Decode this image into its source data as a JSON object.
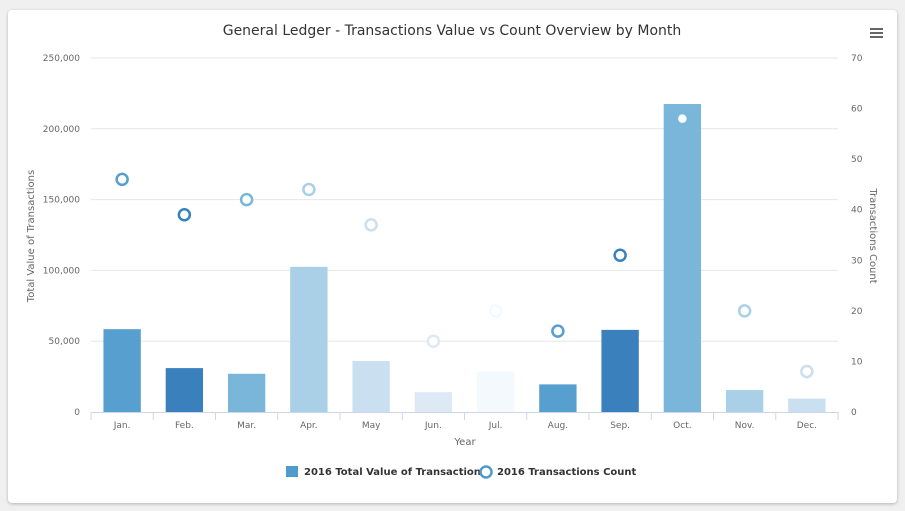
{
  "menu_icon": "hamburger-menu-icon",
  "chart_data": {
    "type": "bar",
    "title": "General Ledger - Transactions Value vs Count Overview by Month",
    "xlabel": "Year",
    "ylabel": "Total Value of Transactions",
    "y2label": "Transactions Count",
    "categories": [
      "Jan.",
      "Feb.",
      "Mar.",
      "Apr.",
      "May",
      "Jun.",
      "Jul.",
      "Aug.",
      "Sep.",
      "Oct.",
      "Nov.",
      "Dec."
    ],
    "ylim": [
      0,
      250000
    ],
    "yticks": [
      "0",
      "50,000",
      "100,000",
      "150,000",
      "200,000",
      "250,000"
    ],
    "y2lim": [
      0,
      70
    ],
    "y2ticks": [
      "0",
      "10",
      "20",
      "30",
      "40",
      "50",
      "60",
      "70"
    ],
    "grid": true,
    "legend_position": "bottom-center",
    "series": [
      {
        "name": "2016 Total Value of Transactions",
        "type": "bar",
        "axis": "left",
        "legend_color": "#4f9bcc",
        "values": [
          58500,
          31000,
          27000,
          102500,
          36000,
          14000,
          28500,
          19500,
          58000,
          217500,
          15500,
          9500
        ],
        "colors": [
          "#579fcf",
          "#3a80bd",
          "#79b6da",
          "#a9d0e6",
          "#cadff0",
          "#dde9f5",
          "#f4f9fe",
          "#579fcf",
          "#3a80bd",
          "#79b6da",
          "#a9d0e6",
          "#cadff0"
        ]
      },
      {
        "name": "2016 Transactions Count",
        "type": "scatter",
        "axis": "right",
        "legend_color": "#4f9bcc",
        "values": [
          46,
          39,
          42,
          44,
          37,
          14,
          20,
          16,
          31,
          58,
          20,
          8
        ],
        "colors": [
          "#579fcf",
          "#3a80bd",
          "#79b6da",
          "#a9d0e6",
          "#cadff0",
          "#dde9f5",
          "#f4f9fe",
          "#579fcf",
          "#3a80bd",
          "#79b6da",
          "#a9d0e6",
          "#cadff0"
        ]
      }
    ]
  }
}
